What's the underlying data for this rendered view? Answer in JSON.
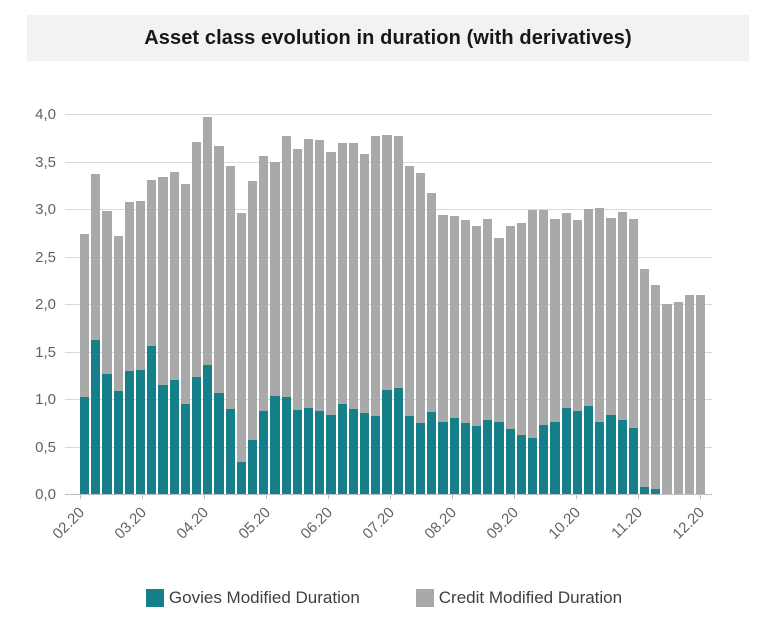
{
  "title": "Asset class evolution in duration (with derivatives)",
  "colors": {
    "govies": "#16808A",
    "credit": "#A9A9A9",
    "gridline": "#D9D9D9",
    "axis_line": "#BFBFBF",
    "axis_text": "#636363",
    "title_band_bg": "#F2F2F2",
    "legend_text": "#3F3F3F"
  },
  "y_axis": {
    "tick_labels": [
      "0,0",
      "0,5",
      "1,0",
      "1,5",
      "2,0",
      "2,5",
      "3,0",
      "3,5",
      "4,0"
    ],
    "tick_values": [
      0,
      0.5,
      1,
      1.5,
      2,
      2.5,
      3,
      3.5,
      4
    ],
    "min": 0,
    "max": 4
  },
  "x_axis": {
    "tick_labels": [
      "02.20",
      "03.20",
      "04.20",
      "05.20",
      "06.20",
      "07.20",
      "08.20",
      "09.20",
      "10.20",
      "11.20",
      "12.20"
    ]
  },
  "legend": [
    {
      "label": "Govies Modified Duration",
      "color": "#16808A"
    },
    {
      "label": "Credit Modified Duration",
      "color": "#A9A9A9"
    }
  ],
  "chart_data": {
    "type": "bar",
    "stacked": true,
    "title": "Asset class evolution in duration (with derivatives)",
    "xlabel": "",
    "ylabel": "",
    "ylim": [
      0,
      4
    ],
    "grid": true,
    "legend_position": "bottom",
    "x_tick_labels": [
      "02.20",
      "03.20",
      "04.20",
      "05.20",
      "06.20",
      "07.20",
      "08.20",
      "09.20",
      "10.20",
      "11.20",
      "12.20"
    ],
    "n_bars": 56,
    "series": [
      {
        "name": "Govies Modified Duration",
        "color": "#16808A",
        "values": [
          1.02,
          1.62,
          1.26,
          1.08,
          1.29,
          1.31,
          1.56,
          1.15,
          1.2,
          0.95,
          1.23,
          1.36,
          1.06,
          0.9,
          0.34,
          0.57,
          0.87,
          1.03,
          1.02,
          0.88,
          0.91,
          0.87,
          0.83,
          0.95,
          0.9,
          0.85,
          0.82,
          1.09,
          1.12,
          0.82,
          0.75,
          0.86,
          0.76,
          0.8,
          0.75,
          0.72,
          0.78,
          0.76,
          0.68,
          0.62,
          0.59,
          0.73,
          0.76,
          0.91,
          0.87,
          0.93,
          0.76,
          0.83,
          0.78,
          0.7,
          0.07,
          0.05,
          0,
          0,
          0,
          0
        ]
      },
      {
        "name": "Credit Modified Duration",
        "color": "#A9A9A9",
        "values": [
          1.72,
          1.75,
          1.72,
          1.64,
          1.78,
          1.77,
          1.75,
          2.19,
          2.19,
          2.31,
          2.48,
          2.61,
          2.6,
          2.55,
          2.62,
          2.72,
          2.69,
          2.46,
          2.75,
          2.75,
          2.83,
          2.86,
          2.77,
          2.75,
          2.8,
          2.73,
          2.95,
          2.69,
          2.65,
          2.63,
          2.63,
          2.31,
          2.18,
          2.13,
          2.13,
          2.1,
          2.12,
          1.94,
          2.14,
          2.23,
          2.4,
          2.26,
          2.14,
          2.05,
          2.01,
          2.07,
          2.25,
          2.08,
          2.19,
          2.2,
          2.3,
          2.15,
          2.0,
          2.02,
          2.09,
          2.1
        ]
      }
    ]
  }
}
